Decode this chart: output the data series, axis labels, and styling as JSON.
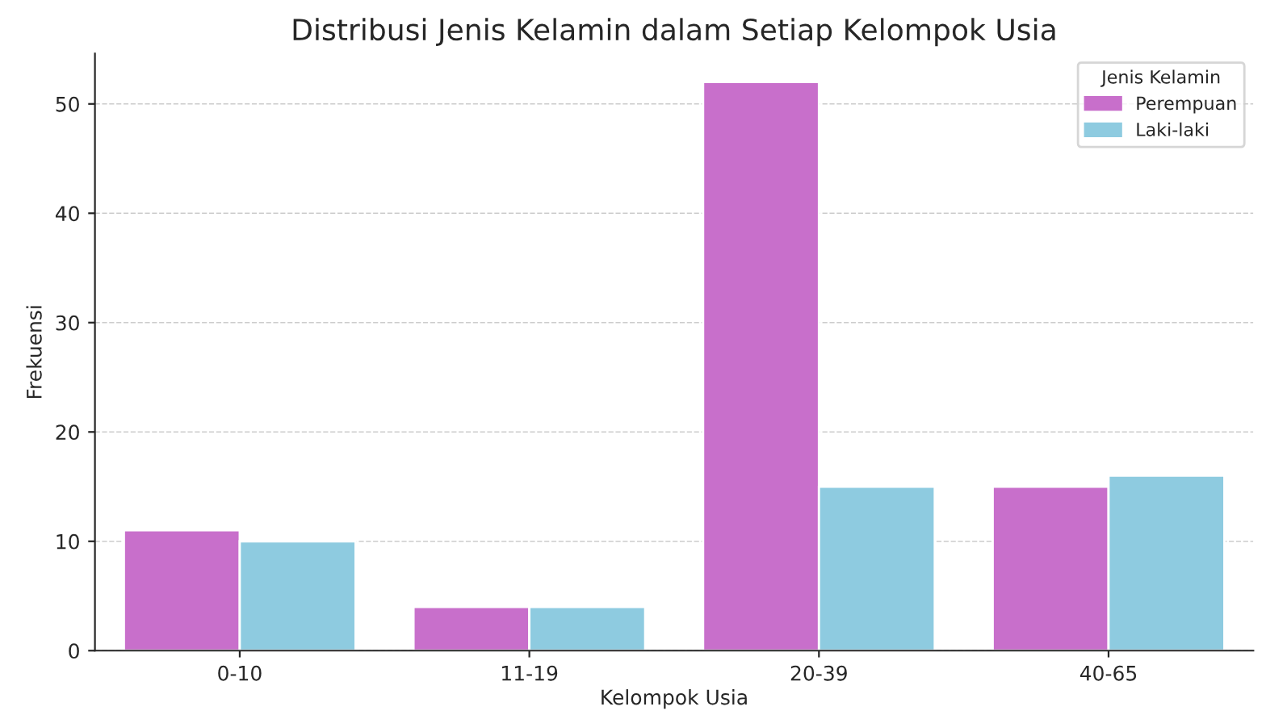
{
  "chart_data": {
    "type": "bar",
    "title": "Distribusi Jenis Kelamin dalam Setiap Kelompok Usia",
    "xlabel": "Kelompok Usia",
    "ylabel": "Frekuensi",
    "legend_title": "Jenis Kelamin",
    "categories": [
      "0-10",
      "11-19",
      "20-39",
      "40-65"
    ],
    "series": [
      {
        "name": "Perempuan",
        "color": "#c86fcb",
        "values": [
          11,
          4,
          52,
          15
        ]
      },
      {
        "name": "Laki-laki",
        "color": "#8ecbe0",
        "values": [
          10,
          4,
          15,
          16
        ]
      }
    ],
    "ylim": [
      0,
      54.6
    ],
    "yticks": [
      0,
      10,
      20,
      30,
      40,
      50
    ],
    "grid": "y",
    "legend": "top right"
  }
}
